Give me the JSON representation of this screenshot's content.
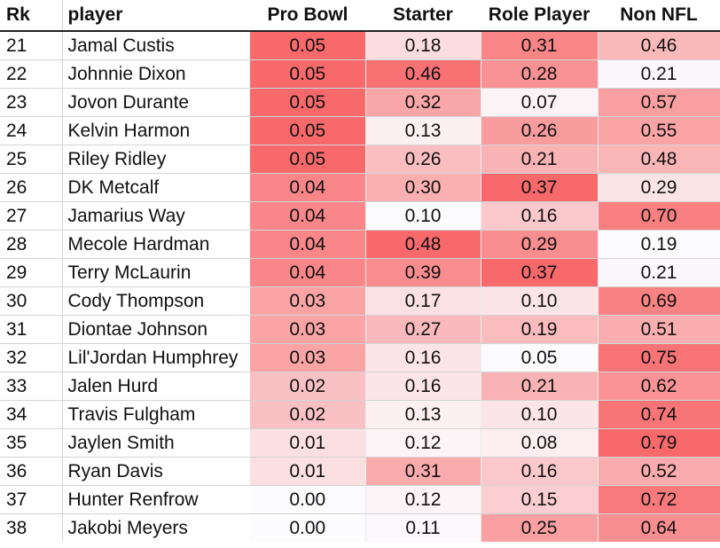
{
  "chart_data": {
    "type": "table",
    "columns": [
      "Rk",
      "player",
      "Pro Bowl",
      "Starter",
      "Role Player",
      "Non NFL"
    ],
    "rows": [
      {
        "rk": "21",
        "player": "Jamal Custis",
        "pro_bowl": "0.05",
        "starter": "0.18",
        "role_player": "0.31",
        "non_nfl": "0.46"
      },
      {
        "rk": "22",
        "player": "Johnnie Dixon",
        "pro_bowl": "0.05",
        "starter": "0.46",
        "role_player": "0.28",
        "non_nfl": "0.21"
      },
      {
        "rk": "23",
        "player": "Jovon Durante",
        "pro_bowl": "0.05",
        "starter": "0.32",
        "role_player": "0.07",
        "non_nfl": "0.57"
      },
      {
        "rk": "24",
        "player": "Kelvin Harmon",
        "pro_bowl": "0.05",
        "starter": "0.13",
        "role_player": "0.26",
        "non_nfl": "0.55"
      },
      {
        "rk": "25",
        "player": "Riley Ridley",
        "pro_bowl": "0.05",
        "starter": "0.26",
        "role_player": "0.21",
        "non_nfl": "0.48"
      },
      {
        "rk": "26",
        "player": "DK Metcalf",
        "pro_bowl": "0.04",
        "starter": "0.30",
        "role_player": "0.37",
        "non_nfl": "0.29"
      },
      {
        "rk": "27",
        "player": "Jamarius Way",
        "pro_bowl": "0.04",
        "starter": "0.10",
        "role_player": "0.16",
        "non_nfl": "0.70"
      },
      {
        "rk": "28",
        "player": "Mecole Hardman",
        "pro_bowl": "0.04",
        "starter": "0.48",
        "role_player": "0.29",
        "non_nfl": "0.19"
      },
      {
        "rk": "29",
        "player": "Terry McLaurin",
        "pro_bowl": "0.04",
        "starter": "0.39",
        "role_player": "0.37",
        "non_nfl": "0.21"
      },
      {
        "rk": "30",
        "player": "Cody Thompson",
        "pro_bowl": "0.03",
        "starter": "0.17",
        "role_player": "0.10",
        "non_nfl": "0.69"
      },
      {
        "rk": "31",
        "player": "Diontae Johnson",
        "pro_bowl": "0.03",
        "starter": "0.27",
        "role_player": "0.19",
        "non_nfl": "0.51"
      },
      {
        "rk": "32",
        "player": "Lil'Jordan Humphrey",
        "pro_bowl": "0.03",
        "starter": "0.16",
        "role_player": "0.05",
        "non_nfl": "0.75"
      },
      {
        "rk": "33",
        "player": "Jalen Hurd",
        "pro_bowl": "0.02",
        "starter": "0.16",
        "role_player": "0.21",
        "non_nfl": "0.62"
      },
      {
        "rk": "34",
        "player": "Travis Fulgham",
        "pro_bowl": "0.02",
        "starter": "0.13",
        "role_player": "0.10",
        "non_nfl": "0.74"
      },
      {
        "rk": "35",
        "player": "Jaylen Smith",
        "pro_bowl": "0.01",
        "starter": "0.12",
        "role_player": "0.08",
        "non_nfl": "0.79"
      },
      {
        "rk": "36",
        "player": "Ryan Davis",
        "pro_bowl": "0.01",
        "starter": "0.31",
        "role_player": "0.16",
        "non_nfl": "0.52"
      },
      {
        "rk": "37",
        "player": "Hunter Renfrow",
        "pro_bowl": "0.00",
        "starter": "0.12",
        "role_player": "0.15",
        "non_nfl": "0.72"
      },
      {
        "rk": "38",
        "player": "Jakobi Meyers",
        "pro_bowl": "0.00",
        "starter": "0.11",
        "role_player": "0.25",
        "non_nfl": "0.64"
      }
    ],
    "heatmap_color_low": "#fcfcff",
    "heatmap_color_high": "#f8696b"
  }
}
